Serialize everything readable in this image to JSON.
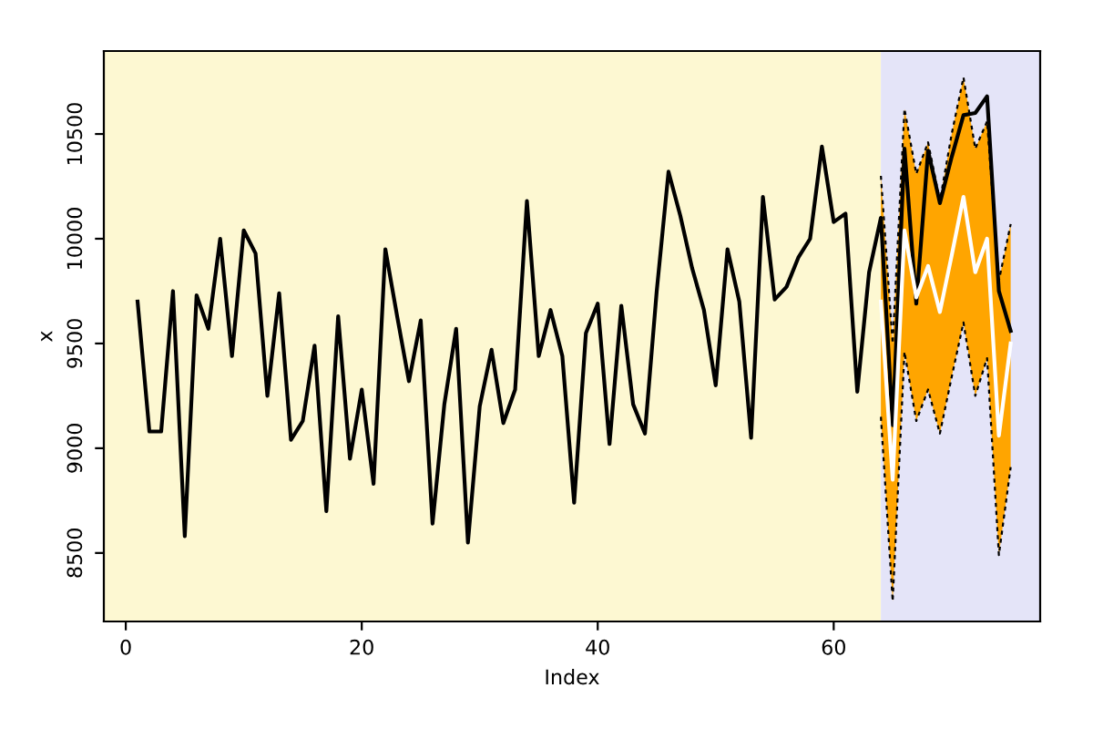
{
  "chart_data": {
    "type": "line",
    "xlabel": "Index",
    "ylabel": "x",
    "xlim": [
      -1.86,
      77.5
    ],
    "xticks": [
      0,
      20,
      40,
      60
    ],
    "ylim": [
      8173,
      10896
    ],
    "yticks": [
      8500,
      9000,
      9500,
      10000,
      10500
    ],
    "bands": [
      {
        "axis": "x",
        "from": -1.86,
        "to": 64,
        "color": "#fdf8d2"
      },
      {
        "axis": "x",
        "from": 64,
        "to": 77.5,
        "color": "#e4e4f8"
      }
    ],
    "series": [
      {
        "color": "#000000",
        "x": [
          1,
          2,
          3,
          4,
          5,
          6,
          7,
          8,
          9,
          10,
          11,
          12,
          13,
          14,
          15,
          16,
          17,
          18,
          19,
          20,
          21,
          22,
          23,
          24,
          25,
          26,
          27,
          28,
          29,
          30,
          31,
          32,
          33,
          34,
          35,
          36,
          37,
          38,
          39,
          40,
          41,
          42,
          43,
          44,
          45,
          46,
          47,
          48,
          49,
          50,
          51,
          52,
          53,
          54,
          55,
          56,
          57,
          58,
          59,
          60,
          61,
          62,
          63,
          64,
          65,
          66,
          67,
          68,
          69,
          70,
          71,
          72,
          73,
          74,
          75
        ],
        "values": [
          9700,
          9080,
          9080,
          9750,
          8580,
          9730,
          9570,
          10000,
          9440,
          10040,
          9930,
          9250,
          9740,
          9040,
          9130,
          9490,
          8700,
          9630,
          8950,
          9280,
          8830,
          9950,
          9630,
          9320,
          9610,
          8640,
          9210,
          9570,
          8550,
          9200,
          9470,
          9120,
          9280,
          10180,
          9440,
          9660,
          9440,
          8740,
          9550,
          9690,
          9020,
          9680,
          9210,
          9070,
          9750,
          10320,
          10110,
          9860,
          9660,
          9300,
          9950,
          9700,
          9050,
          10200,
          9710,
          9770,
          9910,
          10000,
          10440,
          10080,
          10120,
          9270,
          9840,
          10100,
          9110,
          10430,
          9690,
          10420,
          10170,
          10390,
          10590,
          10600,
          10680,
          9750,
          9560
        ]
      },
      {
        "color": "#ffffff",
        "x": [
          64,
          65,
          66,
          67,
          68,
          69,
          70,
          71,
          72,
          73,
          74,
          75
        ],
        "values": [
          9700,
          8850,
          10040,
          9720,
          9870,
          9650,
          9920,
          10200,
          9840,
          10000,
          9060,
          9500
        ],
        "lower": [
          9150,
          8270,
          9460,
          9130,
          9280,
          9070,
          9340,
          9600,
          9250,
          9430,
          8490,
          8910
        ],
        "upper": [
          10300,
          9500,
          10620,
          10310,
          10460,
          10180,
          10500,
          10770,
          10430,
          10560,
          9800,
          10070
        ]
      },
      {
        "color": "#000000",
        "line_style": "dotted",
        "x": [
          64,
          65,
          66,
          67,
          68,
          69,
          70,
          71,
          72,
          73,
          74,
          75
        ],
        "values": [
          10300,
          9500,
          10620,
          10310,
          10460,
          10180,
          10500,
          10770,
          10430,
          10560,
          9800,
          10070
        ]
      },
      {
        "color": "#000000",
        "line_style": "dotted",
        "x": [
          64,
          65,
          66,
          67,
          68,
          69,
          70,
          71,
          72,
          73,
          74,
          75
        ],
        "values": [
          9150,
          8270,
          9460,
          9130,
          9280,
          9070,
          9340,
          9600,
          9250,
          9430,
          8490,
          8910
        ]
      }
    ]
  }
}
